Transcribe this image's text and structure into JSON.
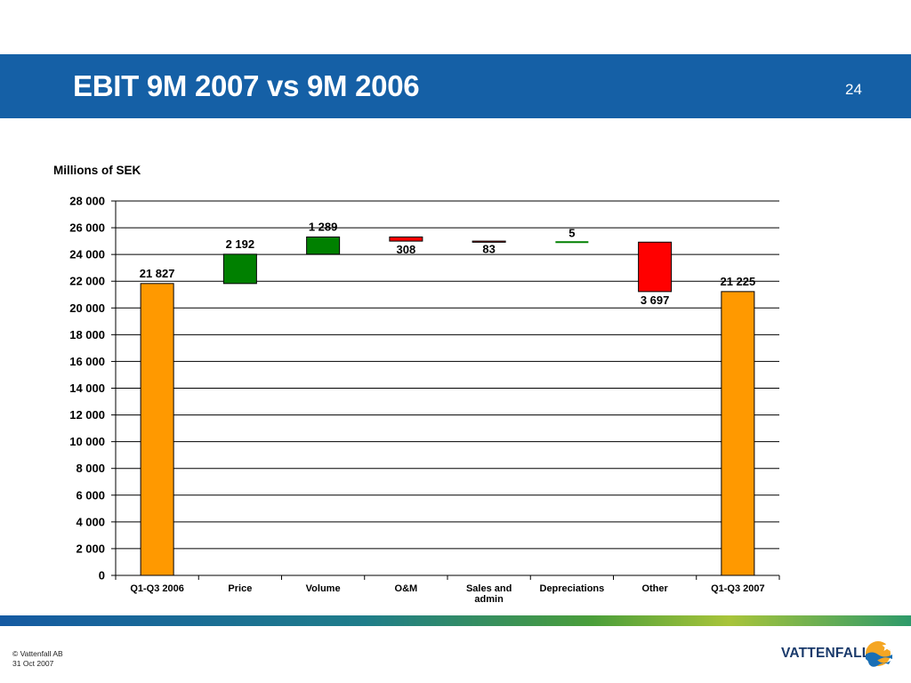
{
  "slide": {
    "title": "EBIT 9M 2007 vs 9M 2006",
    "page_number": "24"
  },
  "chart_data": {
    "type": "bar",
    "ylabel": "Millions of SEK",
    "ylim": [
      0,
      28000
    ],
    "yticks": [
      0,
      2000,
      4000,
      6000,
      8000,
      10000,
      12000,
      14000,
      16000,
      18000,
      20000,
      22000,
      24000,
      26000,
      28000
    ],
    "ytick_labels": [
      "0",
      "2 000",
      "4 000",
      "6 000",
      "8 000",
      "10 000",
      "12 000",
      "14 000",
      "16 000",
      "18 000",
      "20 000",
      "22 000",
      "24 000",
      "26 000",
      "28 000"
    ],
    "grid": true,
    "legend": "none",
    "categories": [
      {
        "label": "Q1-Q3 2006",
        "lines": [
          "Q1-Q3 2006"
        ]
      },
      {
        "label": "Price",
        "lines": [
          "Price"
        ]
      },
      {
        "label": "Volume",
        "lines": [
          "Volume"
        ]
      },
      {
        "label": "O&M",
        "lines": [
          "O&M"
        ]
      },
      {
        "label": "Sales and admin",
        "lines": [
          "Sales and",
          "admin"
        ]
      },
      {
        "label": "Depreciations",
        "lines": [
          "Depreciations"
        ]
      },
      {
        "label": "Other",
        "lines": [
          "Other"
        ]
      },
      {
        "label": "Q1-Q3 2007",
        "lines": [
          "Q1-Q3 2007"
        ]
      }
    ],
    "bars": [
      {
        "category": "Q1-Q3 2006",
        "start": 0,
        "end": 21827,
        "kind": "total",
        "label": "21 827"
      },
      {
        "category": "Price",
        "start": 21827,
        "end": 24019,
        "kind": "increase",
        "label": "2 192"
      },
      {
        "category": "Volume",
        "start": 24019,
        "end": 25308,
        "kind": "increase",
        "label": "1 289"
      },
      {
        "category": "O&M",
        "start": 25308,
        "end": 25000,
        "kind": "decrease",
        "label": "308"
      },
      {
        "category": "Sales and admin",
        "start": 25000,
        "end": 24917,
        "kind": "decrease",
        "label": "83"
      },
      {
        "category": "Depreciations",
        "start": 24917,
        "end": 24922,
        "kind": "increase",
        "label": "5"
      },
      {
        "category": "Other",
        "start": 24922,
        "end": 21225,
        "kind": "decrease",
        "label": "3 697"
      },
      {
        "category": "Q1-Q3 2007",
        "start": 0,
        "end": 21225,
        "kind": "total",
        "label": "21 225"
      }
    ],
    "colors": {
      "total": "#ff9900",
      "increase": "#008000",
      "decrease": "#ff0000",
      "grid": "#000000"
    }
  },
  "footer": {
    "copyright": "© Vattenfall AB",
    "date": "31 Oct 2007",
    "logo_text": "VATTENFALL"
  }
}
